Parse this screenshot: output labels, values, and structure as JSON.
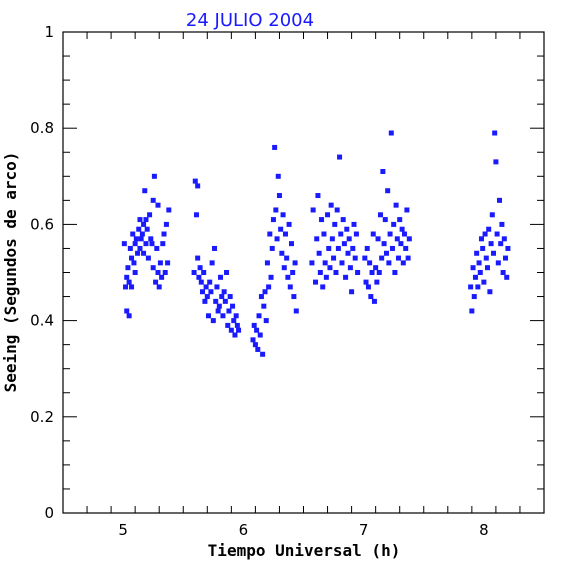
{
  "chart_data": {
    "type": "scatter",
    "title": "24 JULIO 2004",
    "xlabel": "Tiempo Universal (h)",
    "ylabel": "Seeing (Segundos de arco)",
    "xlim": [
      4.5,
      8.5
    ],
    "ylim": [
      0,
      1
    ],
    "x_ticks": [
      "5",
      "6",
      "7",
      "8"
    ],
    "y_ticks": [
      "0",
      "0.2",
      "0.4",
      "0.6",
      "0.8",
      "1"
    ],
    "grid": false,
    "colors": {
      "points": "#1a1aff",
      "title": "#1a1aff",
      "axes": "#000000"
    },
    "x": [
      5.01,
      5.02,
      5.03,
      5.03,
      5.04,
      5.05,
      5.05,
      5.06,
      5.07,
      5.07,
      5.08,
      5.09,
      5.1,
      5.1,
      5.11,
      5.12,
      5.13,
      5.14,
      5.14,
      5.15,
      5.16,
      5.17,
      5.17,
      5.18,
      5.19,
      5.19,
      5.2,
      5.21,
      5.22,
      5.23,
      5.24,
      5.25,
      5.25,
      5.26,
      5.27,
      5.28,
      5.29,
      5.29,
      5.3,
      5.31,
      5.32,
      5.33,
      5.34,
      5.35,
      5.36,
      5.37,
      5.38,
      5.59,
      5.6,
      5.61,
      5.62,
      5.62,
      5.63,
      5.64,
      5.65,
      5.66,
      5.67,
      5.68,
      5.69,
      5.7,
      5.71,
      5.72,
      5.73,
      5.74,
      5.75,
      5.76,
      5.77,
      5.78,
      5.79,
      5.8,
      5.81,
      5.82,
      5.83,
      5.84,
      5.85,
      5.86,
      5.87,
      5.88,
      5.89,
      5.9,
      5.91,
      5.92,
      5.93,
      5.94,
      5.95,
      5.96,
      6.08,
      6.09,
      6.1,
      6.11,
      6.12,
      6.13,
      6.14,
      6.15,
      6.16,
      6.17,
      6.18,
      6.19,
      6.2,
      6.21,
      6.22,
      6.23,
      6.24,
      6.25,
      6.26,
      6.27,
      6.28,
      6.29,
      6.3,
      6.31,
      6.32,
      6.33,
      6.34,
      6.35,
      6.36,
      6.37,
      6.38,
      6.39,
      6.4,
      6.41,
      6.42,
      6.43,
      6.44,
      6.57,
      6.58,
      6.6,
      6.61,
      6.62,
      6.63,
      6.64,
      6.65,
      6.66,
      6.67,
      6.68,
      6.69,
      6.7,
      6.71,
      6.72,
      6.73,
      6.74,
      6.75,
      6.76,
      6.77,
      6.78,
      6.79,
      6.8,
      6.81,
      6.82,
      6.83,
      6.84,
      6.85,
      6.86,
      6.87,
      6.88,
      6.89,
      6.9,
      6.91,
      6.92,
      6.93,
      6.94,
      6.95,
      7.01,
      7.02,
      7.03,
      7.04,
      7.05,
      7.06,
      7.07,
      7.08,
      7.09,
      7.1,
      7.11,
      7.12,
      7.13,
      7.14,
      7.15,
      7.16,
      7.17,
      7.18,
      7.19,
      7.2,
      7.21,
      7.22,
      7.23,
      7.24,
      7.25,
      7.26,
      7.27,
      7.28,
      7.29,
      7.3,
      7.31,
      7.32,
      7.33,
      7.34,
      7.35,
      7.36,
      7.37,
      7.38,
      7.89,
      7.9,
      7.91,
      7.92,
      7.93,
      7.94,
      7.95,
      7.96,
      7.97,
      7.98,
      7.99,
      8.0,
      8.01,
      8.02,
      8.03,
      8.04,
      8.05,
      8.06,
      8.07,
      8.08,
      8.09,
      8.1,
      8.11,
      8.12,
      8.13,
      8.14,
      8.15,
      8.16,
      8.17,
      8.18,
      8.19,
      8.2
    ],
    "y": [
      0.56,
      0.47,
      0.49,
      0.42,
      0.51,
      0.48,
      0.41,
      0.55,
      0.53,
      0.47,
      0.58,
      0.52,
      0.56,
      0.5,
      0.57,
      0.54,
      0.59,
      0.55,
      0.61,
      0.57,
      0.58,
      0.6,
      0.54,
      0.67,
      0.56,
      0.61,
      0.59,
      0.53,
      0.62,
      0.57,
      0.56,
      0.65,
      0.51,
      0.7,
      0.48,
      0.55,
      0.5,
      0.64,
      0.47,
      0.52,
      0.49,
      0.56,
      0.58,
      0.5,
      0.6,
      0.52,
      0.63,
      0.5,
      0.69,
      0.62,
      0.68,
      0.53,
      0.49,
      0.51,
      0.48,
      0.46,
      0.5,
      0.44,
      0.47,
      0.45,
      0.41,
      0.48,
      0.46,
      0.52,
      0.4,
      0.55,
      0.44,
      0.47,
      0.42,
      0.43,
      0.49,
      0.45,
      0.41,
      0.46,
      0.44,
      0.5,
      0.39,
      0.42,
      0.45,
      0.38,
      0.43,
      0.4,
      0.37,
      0.41,
      0.39,
      0.38,
      0.36,
      0.39,
      0.35,
      0.38,
      0.34,
      0.41,
      0.37,
      0.45,
      0.33,
      0.43,
      0.46,
      0.4,
      0.52,
      0.47,
      0.58,
      0.49,
      0.55,
      0.61,
      0.76,
      0.63,
      0.57,
      0.7,
      0.66,
      0.59,
      0.54,
      0.62,
      0.51,
      0.58,
      0.53,
      0.49,
      0.6,
      0.47,
      0.56,
      0.5,
      0.45,
      0.52,
      0.42,
      0.52,
      0.63,
      0.48,
      0.57,
      0.66,
      0.54,
      0.5,
      0.61,
      0.47,
      0.58,
      0.52,
      0.49,
      0.62,
      0.55,
      0.51,
      0.64,
      0.57,
      0.53,
      0.6,
      0.5,
      0.63,
      0.55,
      0.74,
      0.58,
      0.52,
      0.61,
      0.56,
      0.49,
      0.59,
      0.54,
      0.57,
      0.51,
      0.46,
      0.55,
      0.6,
      0.53,
      0.58,
      0.5,
      0.53,
      0.48,
      0.55,
      0.47,
      0.52,
      0.45,
      0.5,
      0.58,
      0.44,
      0.51,
      0.48,
      0.57,
      0.5,
      0.62,
      0.53,
      0.71,
      0.56,
      0.61,
      0.54,
      0.67,
      0.52,
      0.58,
      0.79,
      0.55,
      0.6,
      0.5,
      0.64,
      0.57,
      0.53,
      0.61,
      0.56,
      0.59,
      0.52,
      0.58,
      0.55,
      0.63,
      0.53,
      0.57,
      0.47,
      0.42,
      0.51,
      0.45,
      0.49,
      0.54,
      0.47,
      0.52,
      0.5,
      0.57,
      0.55,
      0.48,
      0.58,
      0.53,
      0.51,
      0.59,
      0.46,
      0.56,
      0.62,
      0.54,
      0.79,
      0.73,
      0.58,
      0.52,
      0.65,
      0.56,
      0.6,
      0.5,
      0.57,
      0.53,
      0.49,
      0.55
    ]
  }
}
